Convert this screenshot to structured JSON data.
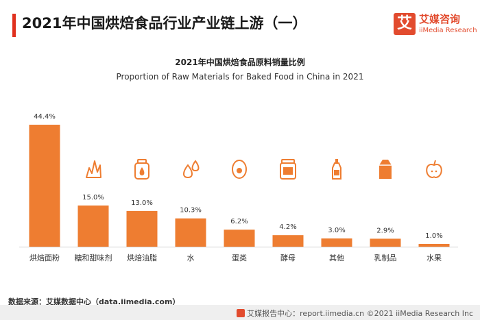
{
  "header": {
    "title": "2021年中国烘焙食品行业产业链上游（一）",
    "accent_color": "#e0301e"
  },
  "logo": {
    "mark": "艾",
    "name_cn": "艾媒咨询",
    "name_en": "iiMedia Research",
    "color": "#e24b2e"
  },
  "chart_data": {
    "type": "bar",
    "title": "2021年中国烘焙食品原料销量比例",
    "subtitle": "Proportion of Raw Materials for Baked Food in China in 2021",
    "categories": [
      "烘焙面粉",
      "糖和甜味剂",
      "烘焙油脂",
      "水",
      "蛋类",
      "酵母",
      "其他",
      "乳制品",
      "水果"
    ],
    "values": [
      44.4,
      15.0,
      13.0,
      10.3,
      6.2,
      4.2,
      3.0,
      2.9,
      1.0
    ],
    "value_labels": [
      "44.4%",
      "15.0%",
      "13.0%",
      "10.3%",
      "6.2%",
      "4.2%",
      "3.0%",
      "2.9%",
      "1.0%"
    ],
    "unit": "%",
    "bar_color": "#ee7d31",
    "icons": [
      "",
      "sugar-icon",
      "oil-jar-icon",
      "water-drops-icon",
      "egg-icon",
      "yeast-jar-icon",
      "bottle-icon",
      "milk-carton-icon",
      "fruit-icon"
    ],
    "ylim": [
      0,
      45
    ],
    "grid": false,
    "legend": "none"
  },
  "source": "数据来源：艾媒数据中心（data.iimedia.com）",
  "footer": {
    "text": "艾媒报告中心：report.iimedia.cn  ©2021  iiMedia Research  Inc"
  }
}
